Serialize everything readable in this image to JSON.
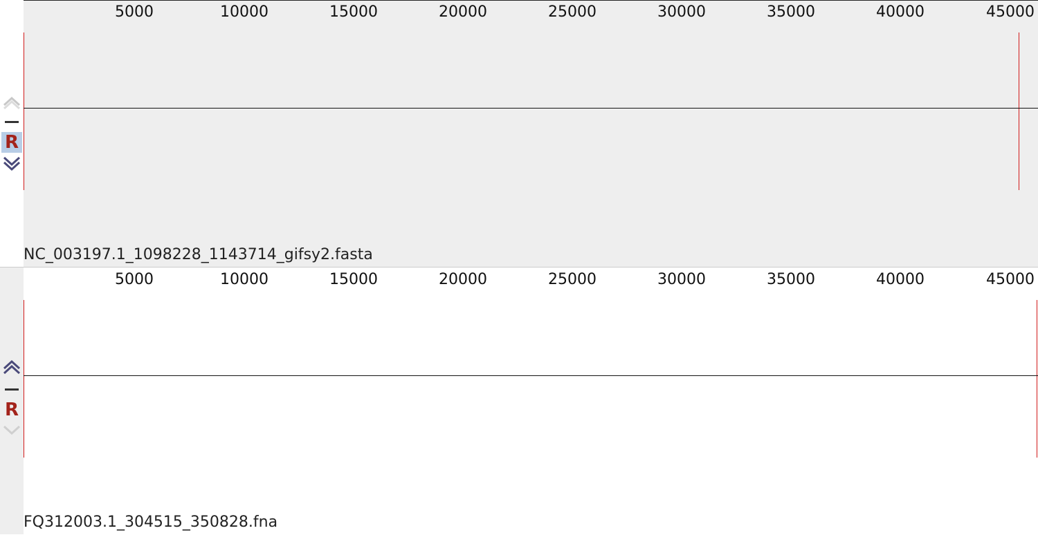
{
  "panels": [
    {
      "sequence_name": "NC_003197.1_1098228_1143714_gifsy2.fasta",
      "reset_label": "R",
      "reset_selected": true,
      "up_enabled": false,
      "down_enabled": true,
      "ruler_ticks": [
        "5000",
        "10000",
        "15000",
        "20000",
        "25000",
        "30000",
        "35000",
        "40000",
        "45000"
      ],
      "colors": {
        "track_bg": "#eeeeee",
        "boundary": "#d11a1a"
      }
    },
    {
      "sequence_name": "FQ312003.1_304515_350828.fna",
      "reset_label": "R",
      "reset_selected": false,
      "up_enabled": true,
      "down_enabled": false,
      "ruler_ticks": [
        "5000",
        "10000",
        "15000",
        "20000",
        "25000",
        "30000",
        "35000",
        "40000",
        "45000"
      ],
      "colors": {
        "track_bg": "#ffffff",
        "boundary": "#d11a1a"
      }
    }
  ],
  "icons": {
    "up": "chevron-up-icon",
    "minus": "minus-icon",
    "reset": "reset-icon",
    "down": "chevron-down-icon"
  }
}
